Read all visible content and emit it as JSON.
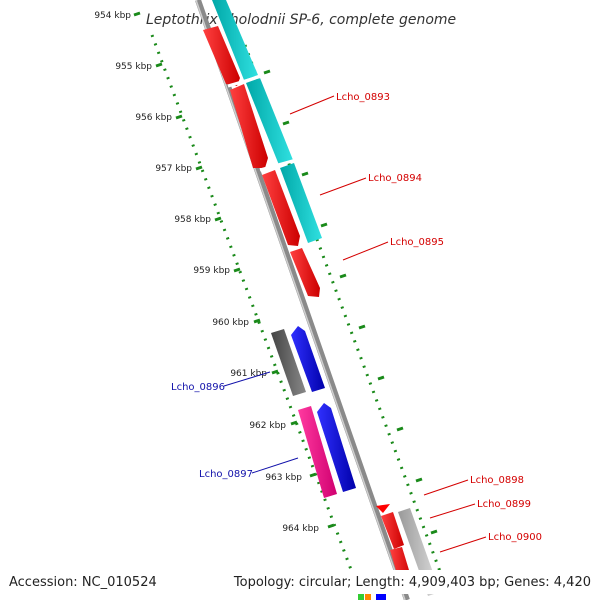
{
  "title": "Leptothrix cholodnii SP-6, complete genome",
  "footer": {
    "accession": "Accession: NC_010524",
    "summary": "Topology: circular; Length: 4,909,403 bp; Genes: 4,420"
  },
  "ticks": [
    "954 kbp",
    "955 kbp",
    "956 kbp",
    "957 kbp",
    "958 kbp",
    "959 kbp",
    "960 kbp",
    "961 kbp",
    "962 kbp",
    "963 kbp",
    "964 kbp"
  ],
  "gene_labels": [
    {
      "text": "Lcho_0893",
      "color": "#d40000"
    },
    {
      "text": "Lcho_0894",
      "color": "#d40000"
    },
    {
      "text": "Lcho_0895",
      "color": "#d40000"
    },
    {
      "text": "Lcho_0896",
      "color": "#1111aa"
    },
    {
      "text": "Lcho_0897",
      "color": "#1111aa"
    },
    {
      "text": "Lcho_0898",
      "color": "#d40000"
    },
    {
      "text": "Lcho_0899",
      "color": "#d40000"
    },
    {
      "text": "Lcho_0900",
      "color": "#d40000"
    }
  ],
  "colors": {
    "backbone": "#8a8a8a",
    "tick_dots": "#1a8a1a",
    "red": "#ff0000",
    "cyan": "#00c8c8",
    "blue": "#0000ff",
    "magenta": "#ff1493",
    "gray": "#555555",
    "light_gray": "#bbbbbb"
  }
}
